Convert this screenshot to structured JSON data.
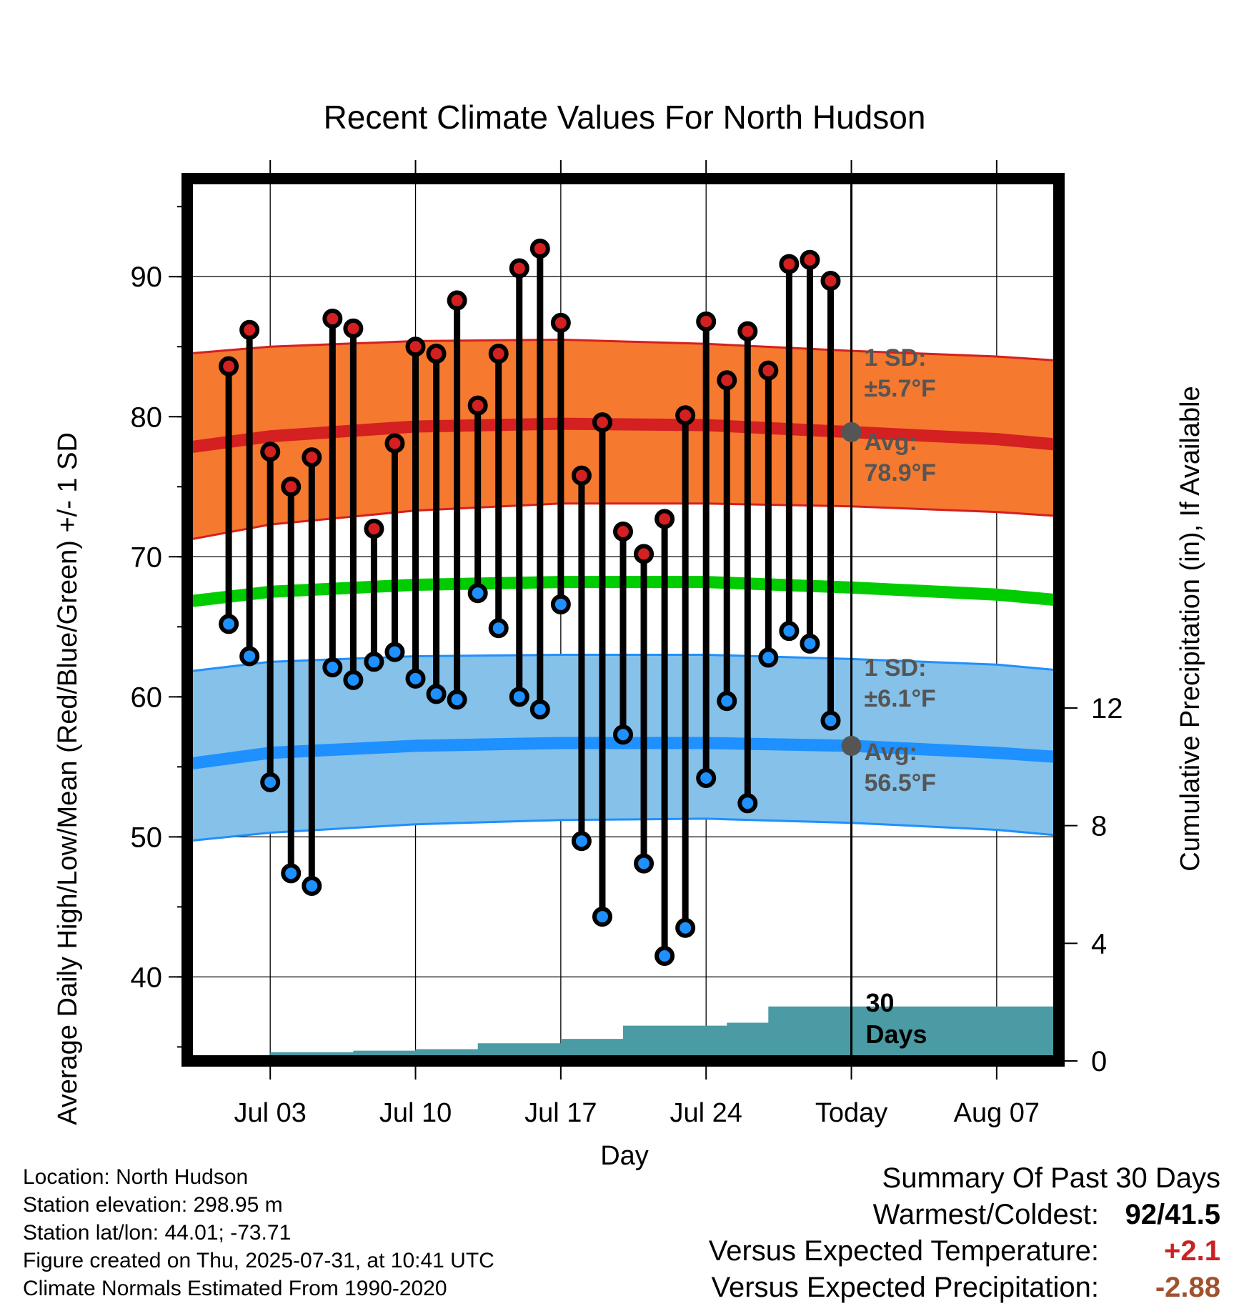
{
  "chart_data": {
    "type": "line",
    "title": "Recent Climate Values For North Hudson",
    "xlabel": "Day",
    "ylabel": "Average Daily High/Low/Mean (Red/Blue/Green) +/- 1 SD",
    "y2label": "Cumulative Precipitation (in), If Available",
    "ylim": [
      34,
      97
    ],
    "y2lim": [
      0,
      30
    ],
    "yticks": [
      "40",
      "50",
      "60",
      "70",
      "80",
      "90"
    ],
    "y2ticks": [
      "0",
      "4",
      "8",
      "12"
    ],
    "xlim": [
      "2025-06-29",
      "2025-08-10"
    ],
    "xticks": [
      {
        "date": "2025-07-03",
        "label": "Jul 03"
      },
      {
        "date": "2025-07-10",
        "label": "Jul 10"
      },
      {
        "date": "2025-07-17",
        "label": "Jul 17"
      },
      {
        "date": "2025-07-24",
        "label": "Jul 24"
      },
      {
        "date": "2025-07-31",
        "label": "Today"
      },
      {
        "date": "2025-08-07",
        "label": "Aug 07"
      }
    ],
    "grid": true,
    "days": [
      "2025-07-01",
      "2025-07-02",
      "2025-07-03",
      "2025-07-04",
      "2025-07-05",
      "2025-07-06",
      "2025-07-07",
      "2025-07-08",
      "2025-07-09",
      "2025-07-10",
      "2025-07-11",
      "2025-07-12",
      "2025-07-13",
      "2025-07-14",
      "2025-07-15",
      "2025-07-16",
      "2025-07-17",
      "2025-07-18",
      "2025-07-19",
      "2025-07-20",
      "2025-07-21",
      "2025-07-22",
      "2025-07-23",
      "2025-07-24",
      "2025-07-25",
      "2025-07-26",
      "2025-07-27",
      "2025-07-28",
      "2025-07-29",
      "2025-07-30"
    ],
    "series": [
      {
        "name": "High",
        "color": "#d42020",
        "values": [
          83.6,
          86.2,
          77.5,
          75.0,
          77.1,
          87.0,
          86.3,
          72.0,
          78.1,
          85.0,
          84.5,
          88.3,
          80.8,
          84.5,
          90.6,
          92.0,
          86.7,
          75.8,
          79.6,
          71.8,
          70.2,
          72.7,
          80.1,
          86.8,
          82.6,
          86.1,
          83.3,
          90.9,
          91.2,
          89.7
        ]
      },
      {
        "name": "Low",
        "color": "#1e90ff",
        "values": [
          65.2,
          62.9,
          53.9,
          47.4,
          46.5,
          62.1,
          61.2,
          62.5,
          63.2,
          61.3,
          60.2,
          59.8,
          67.4,
          64.9,
          60.0,
          59.1,
          66.6,
          49.7,
          44.3,
          57.3,
          48.1,
          41.5,
          43.5,
          54.2,
          59.7,
          52.4,
          62.8,
          64.7,
          63.8,
          58.3
        ]
      }
    ],
    "normals": {
      "x": [
        "2025-06-29",
        "2025-07-03",
        "2025-07-10",
        "2025-07-17",
        "2025-07-24",
        "2025-07-31",
        "2025-08-07",
        "2025-08-10"
      ],
      "high_avg": [
        77.8,
        78.6,
        79.3,
        79.5,
        79.4,
        78.9,
        78.4,
        78.0
      ],
      "high_upper": [
        84.5,
        85.0,
        85.4,
        85.5,
        85.2,
        84.7,
        84.3,
        84.0
      ],
      "high_lower": [
        71.2,
        72.3,
        73.3,
        73.8,
        73.8,
        73.6,
        73.2,
        72.9
      ],
      "mean": [
        66.8,
        67.5,
        68.0,
        68.2,
        68.2,
        67.8,
        67.3,
        66.9
      ],
      "low_avg": [
        55.2,
        56.0,
        56.5,
        56.7,
        56.7,
        56.5,
        56.0,
        55.7
      ],
      "low_upper": [
        61.8,
        62.5,
        62.9,
        63.0,
        63.0,
        62.7,
        62.3,
        61.9
      ],
      "low_lower": [
        49.7,
        50.3,
        50.9,
        51.2,
        51.3,
        51.0,
        50.5,
        50.1
      ],
      "colors": {
        "high_band": "#f5792f",
        "high_line": "#d42020",
        "mean_line": "#00cc00",
        "low_band": "#85c1e9",
        "low_line": "#1e90ff"
      }
    },
    "precip": {
      "color": "#4a9ba4",
      "cumulative": [
        0.1,
        0.1,
        0.3,
        0.3,
        0.3,
        0.3,
        0.35,
        0.35,
        0.35,
        0.4,
        0.4,
        0.4,
        0.6,
        0.6,
        0.6,
        0.6,
        0.75,
        0.75,
        0.75,
        1.2,
        1.2,
        1.2,
        1.2,
        1.2,
        1.3,
        1.3,
        1.85,
        1.85,
        1.85,
        1.85
      ]
    },
    "annotations": {
      "high_sd_label": "1 SD:",
      "high_sd_value": "±5.7°F",
      "high_avg_label": "Avg:",
      "high_avg_value": "78.9°F",
      "high_avg": 78.9,
      "low_sd_label": "1 SD:",
      "low_sd_value": "±6.1°F",
      "low_avg_label": "Avg:",
      "low_avg_value": "56.5°F",
      "low_avg": 56.5,
      "days_num": "30",
      "days_label": "Days"
    }
  },
  "footer": {
    "location": "Location: North Hudson",
    "elevation": "Station elevation: 298.95 m",
    "latlon": "Station lat/lon: 44.01; -73.71",
    "created": "Figure created on Thu, 2025-07-31, at 10:41 UTC",
    "normals": "Climate Normals Estimated From 1990-2020"
  },
  "summary": {
    "title": "Summary Of Past 30 Days",
    "warmest_label": "Warmest/Coldest:",
    "warmest_value": "92/41.5",
    "temp_label": "Versus Expected Temperature:",
    "temp_value": "+2.1",
    "temp_color": "#cc2222",
    "precip_label": "Versus Expected Precipitation:",
    "precip_value": "-2.88",
    "precip_color": "#a0522d"
  }
}
